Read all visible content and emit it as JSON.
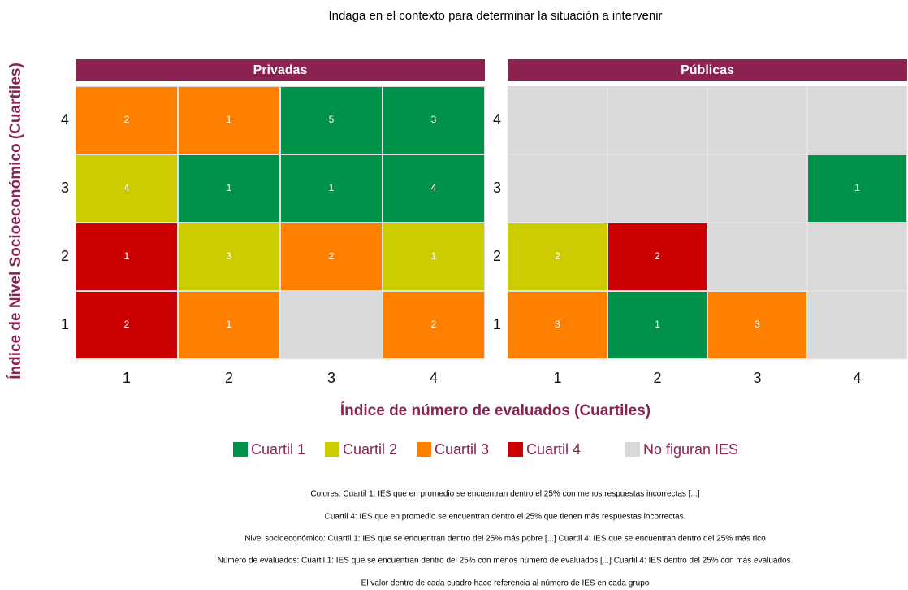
{
  "chart_data": {
    "type": "heatmap",
    "title": "Indaga en el contexto para determinar la situación a intervenir",
    "x_label": "Índice de número de evaluados (Cuartiles)",
    "y_label": "Índice de Nivel Socioeconómico (Cuartiles)",
    "x_categories": [
      1,
      2,
      3,
      4
    ],
    "y_categories": [
      1,
      2,
      3,
      4
    ],
    "facets": [
      {
        "name": "Privadas",
        "cells": [
          {
            "x": 1,
            "y": 4,
            "value": 2,
            "group": "Cuartil 3"
          },
          {
            "x": 2,
            "y": 4,
            "value": 1,
            "group": "Cuartil 3"
          },
          {
            "x": 3,
            "y": 4,
            "value": 5,
            "group": "Cuartil 1"
          },
          {
            "x": 4,
            "y": 4,
            "value": 3,
            "group": "Cuartil 1"
          },
          {
            "x": 1,
            "y": 3,
            "value": 4,
            "group": "Cuartil 2"
          },
          {
            "x": 2,
            "y": 3,
            "value": 1,
            "group": "Cuartil 1"
          },
          {
            "x": 3,
            "y": 3,
            "value": 1,
            "group": "Cuartil 1"
          },
          {
            "x": 4,
            "y": 3,
            "value": 4,
            "group": "Cuartil 1"
          },
          {
            "x": 1,
            "y": 2,
            "value": 1,
            "group": "Cuartil 4"
          },
          {
            "x": 2,
            "y": 2,
            "value": 3,
            "group": "Cuartil 2"
          },
          {
            "x": 3,
            "y": 2,
            "value": 2,
            "group": "Cuartil 3"
          },
          {
            "x": 4,
            "y": 2,
            "value": 1,
            "group": "Cuartil 2"
          },
          {
            "x": 1,
            "y": 1,
            "value": 2,
            "group": "Cuartil 4"
          },
          {
            "x": 2,
            "y": 1,
            "value": 1,
            "group": "Cuartil 3"
          },
          {
            "x": 4,
            "y": 1,
            "value": 2,
            "group": "Cuartil 3"
          }
        ]
      },
      {
        "name": "Públicas",
        "cells": [
          {
            "x": 4,
            "y": 3,
            "value": 1,
            "group": "Cuartil 1"
          },
          {
            "x": 1,
            "y": 2,
            "value": 2,
            "group": "Cuartil 2"
          },
          {
            "x": 2,
            "y": 2,
            "value": 2,
            "group": "Cuartil 4"
          },
          {
            "x": 1,
            "y": 1,
            "value": 3,
            "group": "Cuartil 3"
          },
          {
            "x": 2,
            "y": 1,
            "value": 1,
            "group": "Cuartil 1"
          },
          {
            "x": 3,
            "y": 1,
            "value": 3,
            "group": "Cuartil 3"
          }
        ]
      }
    ],
    "legend": [
      {
        "name": "Cuartil 1",
        "color": "#00914a"
      },
      {
        "name": "Cuartil 2",
        "color": "#cccc00"
      },
      {
        "name": "Cuartil 3",
        "color": "#ff8000"
      },
      {
        "name": "Cuartil 4",
        "color": "#cc0000"
      },
      {
        "name": "No figuran IES",
        "color": "#d9d9d9"
      }
    ],
    "strip_color": "#8b2252",
    "notes": [
      "Colores: Cuartil 1:  IES que en promedio se encuentran dentro el 25% con menos respuestas incorrectas [...]",
      "Cuartil 4: IES que en promedio se encuentran dentro el 25% que tienen más respuestas incorrectas.",
      "Nivel socioeconómico: Cuartil 1: IES que se encuentran dentro del 25% más pobre [...] Cuartil 4: IES que se encuentran dentro del 25% más rico",
      "Número de evaluados: Cuartil 1: IES que se encuentran dentro del 25% con menos número de evaluados [...] Cuartil 4: IES dentro del 25% con más evaluados.",
      "El valor dentro de cada cuadro hace referencia al número de IES en cada grupo"
    ]
  }
}
